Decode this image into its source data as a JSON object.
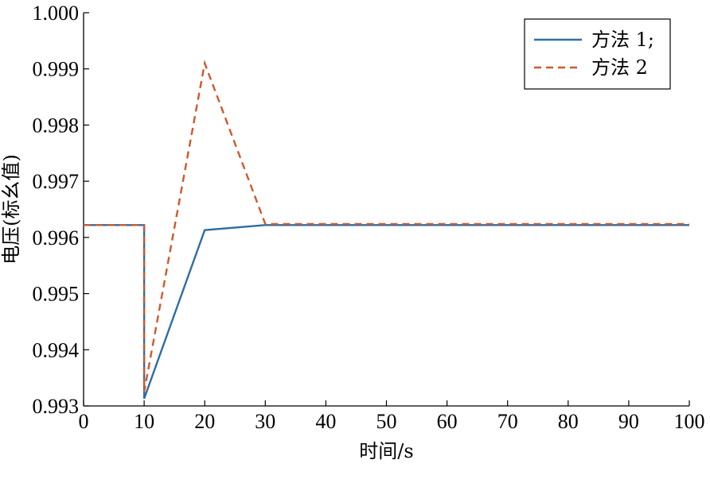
{
  "chart_data": {
    "type": "line",
    "xlabel": "时间/s",
    "ylabel": "电压(标幺值)",
    "xlim": [
      0,
      100
    ],
    "ylim": [
      0.993,
      1.0
    ],
    "x_ticks": [
      0,
      10,
      20,
      30,
      40,
      50,
      60,
      70,
      80,
      90,
      100
    ],
    "x_tick_labels": [
      "0",
      "10",
      "20",
      "30",
      "40",
      "50",
      "60",
      "70",
      "80",
      "90",
      "100"
    ],
    "y_ticks": [
      0.993,
      0.994,
      0.995,
      0.996,
      0.997,
      0.998,
      0.999,
      1.0
    ],
    "y_tick_labels": [
      "0.993",
      "0.994",
      "0.995",
      "0.996",
      "0.997",
      "0.998",
      "0.999",
      "1.000"
    ],
    "grid": false,
    "legend_position": "top-right",
    "series": [
      {
        "name": "方法 1;",
        "color": "#2e6da4",
        "style": "solid",
        "x": [
          0,
          10,
          10,
          20,
          30,
          100
        ],
        "y": [
          0.99622,
          0.99622,
          0.99313,
          0.99613,
          0.99622,
          0.99622
        ]
      },
      {
        "name": "方法 2",
        "color": "#cc5a2e",
        "style": "dashed",
        "x": [
          0,
          10,
          10,
          20,
          30,
          100
        ],
        "y": [
          0.99622,
          0.99622,
          0.99325,
          0.9991,
          0.99624,
          0.99624
        ]
      }
    ]
  }
}
